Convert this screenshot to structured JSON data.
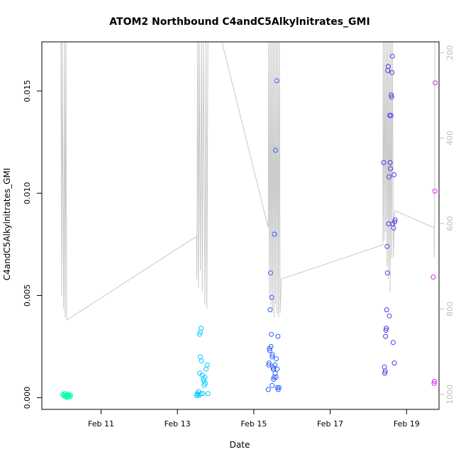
{
  "chart_data": {
    "type": "scatter",
    "title": "ATOM2 Northbound C4andC5Alkylnitrates_GMI",
    "xlabel": "Date",
    "ylabel": "C4andC5Alkylnitrates_GMI",
    "xlim": [
      9.45,
      19.85
    ],
    "ylim": [
      -0.00057,
      0.0174
    ],
    "x_ticks": [
      {
        "value": 11,
        "label": "Feb 11"
      },
      {
        "value": 13,
        "label": "Feb 13"
      },
      {
        "value": 15,
        "label": "Feb 15"
      },
      {
        "value": 17,
        "label": "Feb 17"
      },
      {
        "value": 19,
        "label": "Feb 19"
      }
    ],
    "y_ticks": [
      {
        "value": 0.0,
        "label": "0.000"
      },
      {
        "value": 0.005,
        "label": "0.005"
      },
      {
        "value": 0.01,
        "label": "0.010"
      },
      {
        "value": 0.015,
        "label": "0.015"
      }
    ],
    "y2_label": "",
    "y2lim": [
      175,
      1035
    ],
    "y2_reversed": true,
    "y2_ticks": [
      {
        "value": 200,
        "label": "200"
      },
      {
        "value": 400,
        "label": "400"
      },
      {
        "value": 600,
        "label": "600"
      },
      {
        "value": 800,
        "label": "800"
      },
      {
        "value": 1000,
        "label": "1000"
      }
    ],
    "grid": false,
    "colors": {
      "frame": "#000000",
      "pressure_line": "#c8c8c8",
      "right_axis": "#bdbdbd"
    },
    "series": [
      {
        "color": "#00ffb0",
        "points": [
          [
            10.0,
            0.00015
          ],
          [
            10.02,
            0.0001
          ],
          [
            10.04,
            0.0002
          ],
          [
            10.05,
            8e-05
          ],
          [
            10.07,
            0.00018
          ],
          [
            10.08,
            0.0001
          ],
          [
            10.1,
            5e-05
          ],
          [
            10.12,
            0.00012
          ],
          [
            10.14,
            0.00016
          ],
          [
            10.15,
            7e-05
          ],
          [
            10.17,
            0.0001
          ],
          [
            10.19,
            4e-05
          ],
          [
            10.2,
            0.00013
          ],
          [
            10.1,
            2e-05
          ]
        ]
      },
      {
        "color": "#00ccff",
        "points": [
          [
            13.5,
            0.0001
          ],
          [
            13.52,
            0.0002
          ],
          [
            13.53,
            0.00015
          ],
          [
            13.55,
            0.0003
          ],
          [
            13.57,
            0.00012
          ],
          [
            13.58,
            0.0031
          ],
          [
            13.6,
            0.0032
          ],
          [
            13.62,
            0.0034
          ],
          [
            13.6,
            0.002
          ],
          [
            13.63,
            0.0018
          ],
          [
            13.58,
            0.0012
          ],
          [
            13.65,
            0.0011
          ],
          [
            13.68,
            0.0009
          ],
          [
            13.7,
            0.0008
          ],
          [
            13.72,
            0.001
          ],
          [
            13.75,
            0.0014
          ],
          [
            13.78,
            0.0016
          ],
          [
            13.7,
            0.0006
          ],
          [
            13.73,
            0.0007
          ],
          [
            13.62,
            0.0002
          ],
          [
            13.67,
            0.0002
          ],
          [
            13.8,
            0.0002
          ]
        ]
      },
      {
        "color": "#2a5cff",
        "points": [
          [
            15.39,
            0.0016
          ],
          [
            15.4,
            0.0017
          ],
          [
            15.41,
            0.0024
          ],
          [
            15.42,
            0.0023
          ],
          [
            15.43,
            0.0043
          ],
          [
            15.44,
            0.0061
          ],
          [
            15.45,
            0.0025
          ],
          [
            15.46,
            0.0031
          ],
          [
            15.47,
            0.0049
          ],
          [
            15.48,
            0.002
          ],
          [
            15.49,
            0.0021
          ],
          [
            15.5,
            0.0015
          ],
          [
            15.51,
            0.0014
          ],
          [
            15.52,
            0.0009
          ],
          [
            15.53,
            0.001
          ],
          [
            15.54,
            0.008
          ],
          [
            15.55,
            0.0016
          ],
          [
            15.56,
            0.0012
          ],
          [
            15.57,
            0.0121
          ],
          [
            15.58,
            0.001
          ],
          [
            15.59,
            0.0019
          ],
          [
            15.6,
            0.0155
          ],
          [
            15.61,
            0.0014
          ],
          [
            15.62,
            0.0005
          ],
          [
            15.63,
            0.003
          ],
          [
            15.64,
            0.0004
          ],
          [
            15.66,
            0.0005
          ],
          [
            15.38,
            0.0004
          ],
          [
            15.48,
            0.0006
          ],
          [
            15.52,
            0.0014
          ]
        ]
      },
      {
        "color": "#5a32e6",
        "points": [
          [
            18.4,
            0.0115
          ],
          [
            18.42,
            0.0015
          ],
          [
            18.43,
            0.0012
          ],
          [
            18.44,
            0.0013
          ],
          [
            18.45,
            0.003
          ],
          [
            18.46,
            0.0033
          ],
          [
            18.47,
            0.0034
          ],
          [
            18.48,
            0.0043
          ],
          [
            18.49,
            0.0074
          ],
          [
            18.5,
            0.0061
          ],
          [
            18.51,
            0.016
          ],
          [
            18.52,
            0.0162
          ],
          [
            18.53,
            0.0085
          ],
          [
            18.54,
            0.0108
          ],
          [
            18.55,
            0.004
          ],
          [
            18.56,
            0.0138
          ],
          [
            18.57,
            0.0115
          ],
          [
            18.58,
            0.0112
          ],
          [
            18.59,
            0.0138
          ],
          [
            18.6,
            0.0148
          ],
          [
            18.61,
            0.0147
          ],
          [
            18.62,
            0.0159
          ],
          [
            18.63,
            0.0167
          ],
          [
            18.64,
            0.0085
          ],
          [
            18.65,
            0.0027
          ],
          [
            18.66,
            0.0083
          ],
          [
            18.67,
            0.0109
          ],
          [
            18.68,
            0.0017
          ],
          [
            18.69,
            0.0086
          ],
          [
            18.7,
            0.0087
          ]
        ]
      },
      {
        "color": "#dd22ee",
        "points": [
          [
            19.7,
            0.0059
          ],
          [
            19.72,
            0.0007
          ],
          [
            19.73,
            0.0008
          ],
          [
            19.74,
            0.0101
          ],
          [
            19.75,
            0.0154
          ]
        ]
      }
    ],
    "pressure_line": [
      [
        9.95,
        170
      ],
      [
        9.97,
        770
      ],
      [
        9.98,
        170
      ],
      [
        10.02,
        800
      ],
      [
        10.04,
        170
      ],
      [
        10.06,
        820
      ],
      [
        10.08,
        170
      ],
      [
        10.1,
        820
      ],
      [
        10.12,
        825
      ],
      [
        13.5,
        630
      ],
      [
        13.51,
        730
      ],
      [
        13.53,
        170
      ],
      [
        13.55,
        750
      ],
      [
        13.57,
        170
      ],
      [
        13.6,
        710
      ],
      [
        13.63,
        170
      ],
      [
        13.65,
        760
      ],
      [
        13.68,
        170
      ],
      [
        13.72,
        790
      ],
      [
        13.75,
        170
      ],
      [
        13.77,
        800
      ],
      [
        13.8,
        170
      ],
      [
        14.15,
        170
      ],
      [
        15.38,
        610
      ],
      [
        15.39,
        170
      ],
      [
        15.41,
        770
      ],
      [
        15.43,
        170
      ],
      [
        15.45,
        790
      ],
      [
        15.47,
        170
      ],
      [
        15.49,
        800
      ],
      [
        15.51,
        170
      ],
      [
        15.53,
        820
      ],
      [
        15.55,
        170
      ],
      [
        15.57,
        790
      ],
      [
        15.59,
        170
      ],
      [
        15.61,
        810
      ],
      [
        15.63,
        170
      ],
      [
        15.65,
        820
      ],
      [
        15.67,
        170
      ],
      [
        15.69,
        810
      ],
      [
        15.72,
        730
      ],
      [
        18.38,
        650
      ],
      [
        18.39,
        170
      ],
      [
        18.41,
        640
      ],
      [
        18.43,
        170
      ],
      [
        18.45,
        620
      ],
      [
        18.47,
        170
      ],
      [
        18.49,
        700
      ],
      [
        18.51,
        170
      ],
      [
        18.53,
        730
      ],
      [
        18.55,
        170
      ],
      [
        18.57,
        760
      ],
      [
        18.59,
        170
      ],
      [
        18.61,
        680
      ],
      [
        18.63,
        170
      ],
      [
        18.65,
        600
      ],
      [
        18.66,
        680
      ],
      [
        18.68,
        580
      ],
      [
        18.7,
        570
      ],
      [
        19.72,
        610
      ],
      [
        19.73,
        680
      ],
      [
        19.74,
        170
      ]
    ]
  }
}
